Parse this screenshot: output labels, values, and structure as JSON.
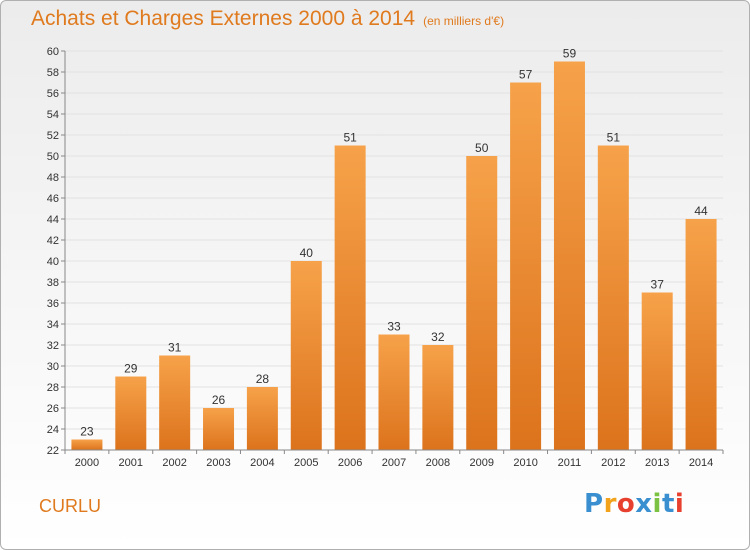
{
  "title": "Achats et Charges Externes 2000 à 2014",
  "title_unit": "(en milliers d'€)",
  "commune": "CURLU",
  "logo": {
    "letters": [
      "P",
      "r",
      "o",
      "x",
      "i",
      "t",
      "i"
    ],
    "colors": [
      "#3a8fd0",
      "#f2a21b",
      "#e8402e",
      "#3a8fd0",
      "#7cc242",
      "#3a8fd0",
      "#e8402e"
    ]
  },
  "chart_data": {
    "type": "bar",
    "categories": [
      "2000",
      "2001",
      "2002",
      "2003",
      "2004",
      "2005",
      "2006",
      "2007",
      "2008",
      "2009",
      "2010",
      "2011",
      "2012",
      "2013",
      "2014"
    ],
    "values": [
      23,
      29,
      31,
      26,
      28,
      40,
      51,
      33,
      32,
      50,
      57,
      59,
      51,
      37,
      44
    ],
    "ylim": [
      22,
      60
    ],
    "ytick_step": 2,
    "grid": true,
    "bar_color_top": "#f6a24a",
    "bar_color_bottom": "#dc731c"
  }
}
